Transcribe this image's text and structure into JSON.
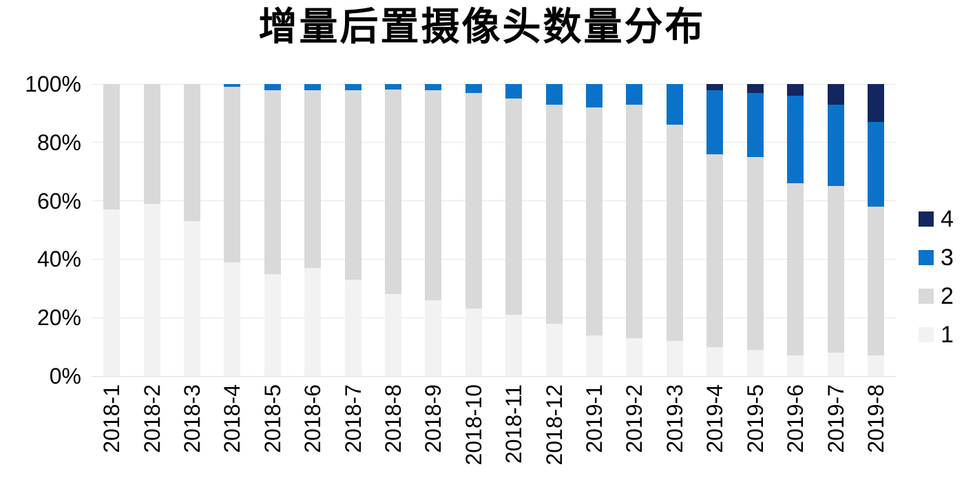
{
  "title": "增量后置摄像头数量分布",
  "chart_data": {
    "type": "bar",
    "stacked": true,
    "percent_stacked": true,
    "title": "增量后置摄像头数量分布",
    "categories": [
      "2018-1",
      "2018-2",
      "2018-3",
      "2018-4",
      "2018-5",
      "2018-6",
      "2018-7",
      "2018-8",
      "2018-9",
      "2018-10",
      "2018-11",
      "2018-12",
      "2019-1",
      "2019-2",
      "2019-3",
      "2019-4",
      "2019-5",
      "2019-6",
      "2019-7",
      "2019-8"
    ],
    "series": [
      {
        "name": "1",
        "color": "#f2f2f2",
        "values": [
          57,
          59,
          53,
          39,
          35,
          37,
          33,
          28,
          26,
          23,
          21,
          18,
          14,
          13,
          12,
          10,
          9,
          7,
          8,
          7
        ]
      },
      {
        "name": "2",
        "color": "#d9d9d9",
        "values": [
          43,
          41,
          47,
          60,
          63,
          61,
          65,
          70,
          72,
          74,
          74,
          75,
          78,
          80,
          74,
          66,
          66,
          59,
          57,
          51
        ]
      },
      {
        "name": "3",
        "color": "#0a73c9",
        "values": [
          0,
          0,
          0,
          1,
          2,
          2,
          2,
          2,
          2,
          3,
          5,
          7,
          8,
          7,
          14,
          22,
          22,
          30,
          28,
          29
        ]
      },
      {
        "name": "4",
        "color": "#13265e",
        "values": [
          0,
          0,
          0,
          0,
          0,
          0,
          0,
          0,
          0,
          0,
          0,
          0,
          0,
          0,
          0,
          2,
          3,
          4,
          7,
          13
        ]
      }
    ],
    "y_ticks_percent": [
      0,
      20,
      40,
      60,
      80,
      100
    ],
    "y_tick_labels": [
      "0%",
      "20%",
      "40%",
      "60%",
      "80%",
      "100%"
    ],
    "ylim": [
      0,
      100
    ],
    "grid": true,
    "legend": [
      "4",
      "3",
      "2",
      "1"
    ],
    "legend_position": "right"
  }
}
